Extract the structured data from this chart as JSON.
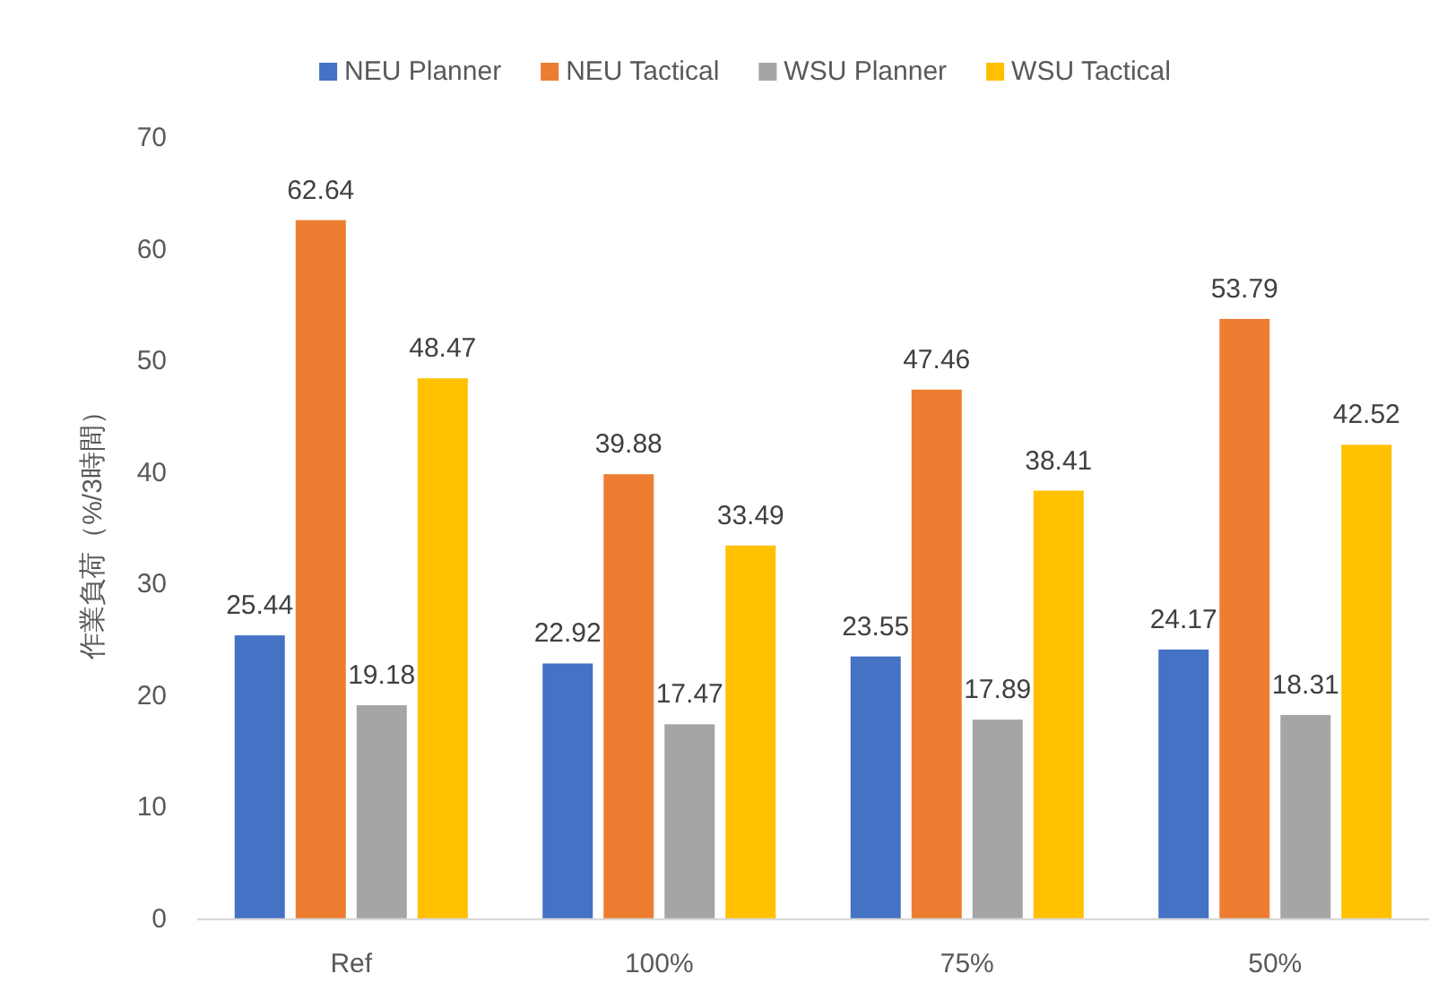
{
  "chart_data": {
    "type": "bar",
    "ylabel": "作業負荷（%/3時間）",
    "categories": [
      "Ref",
      "100%",
      "75%",
      "50%"
    ],
    "series": [
      {
        "name": "NEU Planner",
        "color": "#4472c4",
        "values": [
          25.44,
          22.92,
          23.55,
          24.17
        ]
      },
      {
        "name": "NEU Tactical",
        "color": "#ed7d31",
        "values": [
          62.64,
          39.88,
          47.46,
          53.79
        ]
      },
      {
        "name": "WSU Planner",
        "color": "#a5a5a5",
        "values": [
          19.18,
          17.47,
          17.89,
          18.31
        ]
      },
      {
        "name": "WSU Tactical",
        "color": "#ffc000",
        "values": [
          48.47,
          33.49,
          38.41,
          42.52
        ]
      }
    ],
    "ylim": [
      0,
      70
    ],
    "yticks": [
      0,
      10,
      20,
      30,
      40,
      50,
      60,
      70
    ],
    "data_labels": true,
    "legend": "top"
  }
}
